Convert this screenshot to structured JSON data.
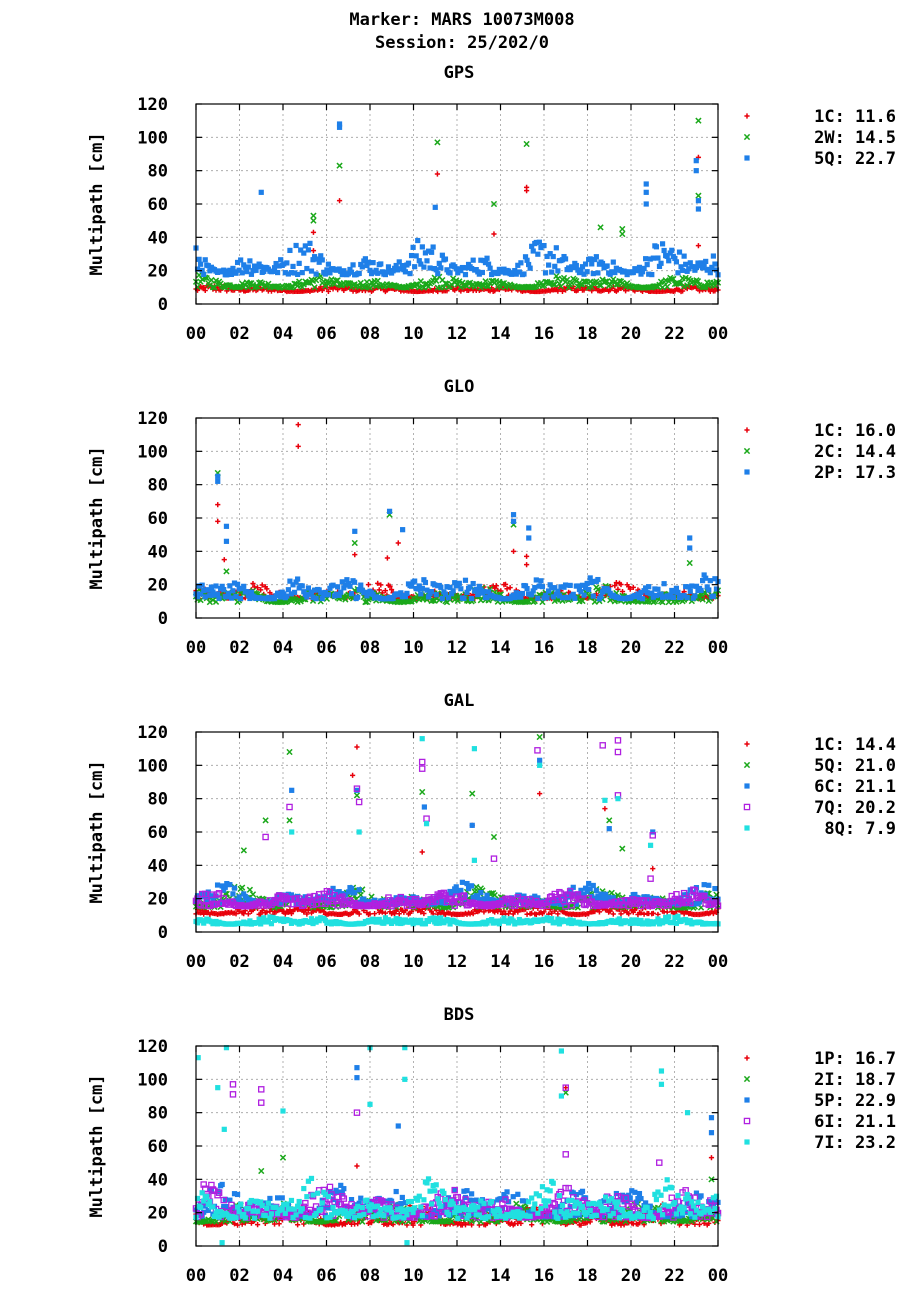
{
  "title_line1": "Marker: MARS 10073M008",
  "title_line2": "Session: 25/202/0",
  "colors": {
    "red": "#e8000b",
    "green": "#1aa81a",
    "blue": "#1e7fe8",
    "purple": "#b020e0",
    "cyan": "#20e0e0"
  },
  "chart_data": [
    {
      "type": "scatter",
      "title": "GPS",
      "ylabel": "Multipath [cm]",
      "xlabel": "",
      "ylim": [
        0,
        120
      ],
      "yticks": [
        "0",
        "20",
        "40",
        "60",
        "80",
        "100",
        "120"
      ],
      "xticks": [
        "00",
        "02",
        "04",
        "06",
        "08",
        "10",
        "12",
        "14",
        "16",
        "18",
        "20",
        "22",
        "00"
      ],
      "grid": true,
      "legend_position": "right",
      "series": [
        {
          "name": "1C",
          "label": "1C: 11.6",
          "rms": 11.6,
          "marker": "plus",
          "color": "red",
          "band": [
            6,
            12
          ],
          "spikes": [
            [
              5.4,
              43
            ],
            [
              5.4,
              32
            ],
            [
              6.6,
              62
            ],
            [
              11.1,
              78
            ],
            [
              13.7,
              42
            ],
            [
              15.2,
              70
            ],
            [
              15.2,
              68
            ],
            [
              23.1,
              88
            ],
            [
              23.1,
              35
            ]
          ]
        },
        {
          "name": "2W",
          "label": "2W: 14.5",
          "rms": 14.5,
          "marker": "x",
          "color": "green",
          "band": [
            7,
            18
          ],
          "spikes": [
            [
              5.4,
              53
            ],
            [
              5.4,
              50
            ],
            [
              6.6,
              83
            ],
            [
              11.1,
              97
            ],
            [
              13.7,
              60
            ],
            [
              15.2,
              96
            ],
            [
              18.6,
              46
            ],
            [
              19.6,
              45
            ],
            [
              19.6,
              42
            ],
            [
              23.1,
              110
            ],
            [
              23.1,
              65
            ]
          ]
        },
        {
          "name": "5Q",
          "label": "5Q: 22.7",
          "rms": 22.7,
          "marker": "square",
          "color": "blue",
          "band": [
            10,
            40
          ],
          "spikes": [
            [
              3.0,
              67
            ],
            [
              6.6,
              108
            ],
            [
              6.6,
              106
            ],
            [
              11.0,
              58
            ],
            [
              20.7,
              72
            ],
            [
              20.7,
              67
            ],
            [
              20.7,
              60
            ],
            [
              23.0,
              86
            ],
            [
              23.0,
              80
            ],
            [
              23.1,
              62
            ],
            [
              23.1,
              57
            ]
          ]
        }
      ]
    },
    {
      "type": "scatter",
      "title": "GLO",
      "ylabel": "Multipath [cm]",
      "xlabel": "",
      "ylim": [
        0,
        120
      ],
      "yticks": [
        "0",
        "20",
        "40",
        "60",
        "80",
        "100",
        "120"
      ],
      "xticks": [
        "00",
        "02",
        "04",
        "06",
        "08",
        "10",
        "12",
        "14",
        "16",
        "18",
        "20",
        "22",
        "00"
      ],
      "grid": true,
      "legend_position": "right",
      "series": [
        {
          "name": "1C",
          "label": "1C: 16.0",
          "rms": 16.0,
          "marker": "plus",
          "color": "red",
          "band": [
            8,
            22
          ],
          "spikes": [
            [
              1.0,
              68
            ],
            [
              1.0,
              58
            ],
            [
              1.3,
              35
            ],
            [
              4.7,
              116
            ],
            [
              4.7,
              103
            ],
            [
              7.3,
              38
            ],
            [
              8.8,
              36
            ],
            [
              9.3,
              45
            ],
            [
              14.6,
              40
            ],
            [
              15.2,
              37
            ],
            [
              15.2,
              32
            ]
          ]
        },
        {
          "name": "2C",
          "label": "2C: 14.4",
          "rms": 14.4,
          "marker": "x",
          "color": "green",
          "band": [
            6,
            20
          ],
          "spikes": [
            [
              1.0,
              87
            ],
            [
              1.4,
              28
            ],
            [
              7.3,
              45
            ],
            [
              8.9,
              62
            ],
            [
              14.6,
              56
            ],
            [
              22.7,
              33
            ]
          ]
        },
        {
          "name": "2P",
          "label": "2P: 17.3",
          "rms": 17.3,
          "marker": "square",
          "color": "blue",
          "band": [
            6,
            28
          ],
          "spikes": [
            [
              1.0,
              85
            ],
            [
              1.0,
              82
            ],
            [
              1.4,
              55
            ],
            [
              1.4,
              46
            ],
            [
              7.3,
              52
            ],
            [
              8.9,
              64
            ],
            [
              9.5,
              53
            ],
            [
              14.6,
              62
            ],
            [
              14.6,
              58
            ],
            [
              15.3,
              54
            ],
            [
              15.3,
              48
            ],
            [
              22.7,
              48
            ],
            [
              22.7,
              42
            ]
          ]
        }
      ]
    },
    {
      "type": "scatter",
      "title": "GAL",
      "ylabel": "Multipath [cm]",
      "xlabel": "",
      "ylim": [
        0,
        120
      ],
      "yticks": [
        "0",
        "20",
        "40",
        "60",
        "80",
        "100",
        "120"
      ],
      "xticks": [
        "00",
        "02",
        "04",
        "06",
        "08",
        "10",
        "12",
        "14",
        "16",
        "18",
        "20",
        "22",
        "00"
      ],
      "grid": true,
      "legend_position": "right",
      "series": [
        {
          "name": "1C",
          "label": "1C: 14.4",
          "rms": 14.4,
          "marker": "plus",
          "color": "red",
          "band": [
            8,
            18
          ],
          "spikes": [
            [
              7.2,
              94
            ],
            [
              7.4,
              111
            ],
            [
              10.4,
              48
            ],
            [
              12.7,
              64
            ],
            [
              15.8,
              83
            ],
            [
              18.8,
              74
            ],
            [
              21.0,
              38
            ]
          ]
        },
        {
          "name": "5Q",
          "label": "5Q: 21.0",
          "rms": 21.0,
          "marker": "x",
          "color": "green",
          "band": [
            10,
            28
          ],
          "spikes": [
            [
              2.2,
              49
            ],
            [
              3.2,
              67
            ],
            [
              4.3,
              108
            ],
            [
              4.3,
              67
            ],
            [
              7.4,
              82
            ],
            [
              10.4,
              84
            ],
            [
              12.7,
              83
            ],
            [
              13.7,
              57
            ],
            [
              15.8,
              117
            ],
            [
              19.0,
              67
            ],
            [
              19.6,
              50
            ]
          ]
        },
        {
          "name": "6C",
          "label": "6C: 21.1",
          "rms": 21.1,
          "marker": "square",
          "color": "blue",
          "band": [
            12,
            30
          ],
          "spikes": [
            [
              4.4,
              85
            ],
            [
              7.4,
              85
            ],
            [
              10.5,
              75
            ],
            [
              12.7,
              64
            ],
            [
              15.8,
              103
            ],
            [
              19.0,
              62
            ],
            [
              21.0,
              60
            ]
          ]
        },
        {
          "name": "7Q",
          "label": "7Q: 20.2",
          "rms": 20.2,
          "marker": "osquare",
          "color": "purple",
          "band": [
            12,
            26
          ],
          "spikes": [
            [
              3.2,
              57
            ],
            [
              4.3,
              75
            ],
            [
              7.4,
              86
            ],
            [
              7.5,
              78
            ],
            [
              10.4,
              102
            ],
            [
              10.4,
              98
            ],
            [
              10.6,
              68
            ],
            [
              13.7,
              44
            ],
            [
              15.7,
              109
            ],
            [
              18.7,
              112
            ],
            [
              19.4,
              115
            ],
            [
              19.4,
              108
            ],
            [
              19.4,
              82
            ],
            [
              21.0,
              58
            ],
            [
              20.9,
              32
            ]
          ]
        },
        {
          "name": "8Q",
          "label": "8Q:  7.9",
          "rms": 7.9,
          "marker": "square",
          "color": "cyan",
          "band": [
            3,
            10
          ],
          "spikes": [
            [
              4.4,
              60
            ],
            [
              7.5,
              60
            ],
            [
              10.4,
              116
            ],
            [
              10.6,
              65
            ],
            [
              12.8,
              110
            ],
            [
              12.8,
              43
            ],
            [
              15.8,
              100
            ],
            [
              18.8,
              79
            ],
            [
              19.4,
              80
            ],
            [
              20.9,
              52
            ]
          ]
        }
      ]
    },
    {
      "type": "scatter",
      "title": "BDS",
      "ylabel": "Multipath [cm]",
      "xlabel": "",
      "ylim": [
        0,
        120
      ],
      "yticks": [
        "0",
        "20",
        "40",
        "60",
        "80",
        "100",
        "120"
      ],
      "xticks": [
        "00",
        "02",
        "04",
        "06",
        "08",
        "10",
        "12",
        "14",
        "16",
        "18",
        "20",
        "22",
        "00"
      ],
      "grid": true,
      "legend_position": "right",
      "series": [
        {
          "name": "1P",
          "label": "1P: 16.7",
          "rms": 16.7,
          "marker": "plus",
          "color": "red",
          "band": [
            8,
            26
          ],
          "spikes": [
            [
              7.4,
              48
            ],
            [
              17.0,
              95
            ],
            [
              23.7,
              53
            ]
          ]
        },
        {
          "name": "2I",
          "label": "2I: 18.7",
          "rms": 18.7,
          "marker": "x",
          "color": "green",
          "band": [
            10,
            28
          ],
          "spikes": [
            [
              3.0,
              45
            ],
            [
              4.0,
              53
            ],
            [
              17.0,
              92
            ],
            [
              23.7,
              40
            ]
          ]
        },
        {
          "name": "5P",
          "label": "5P: 22.9",
          "rms": 22.9,
          "marker": "square",
          "color": "blue",
          "band": [
            10,
            40
          ],
          "spikes": [
            [
              7.4,
              107
            ],
            [
              7.4,
              101
            ],
            [
              9.3,
              72
            ],
            [
              23.7,
              77
            ],
            [
              23.7,
              68
            ]
          ]
        },
        {
          "name": "6I",
          "label": "6I: 21.1",
          "rms": 21.1,
          "marker": "osquare",
          "color": "purple",
          "band": [
            10,
            38
          ],
          "spikes": [
            [
              1.7,
              97
            ],
            [
              1.7,
              91
            ],
            [
              3.0,
              94
            ],
            [
              3.0,
              86
            ],
            [
              7.4,
              80
            ],
            [
              17.0,
              95
            ],
            [
              17.0,
              55
            ],
            [
              21.3,
              50
            ]
          ]
        },
        {
          "name": "7I",
          "label": "7I: 23.2",
          "rms": 23.2,
          "marker": "square",
          "color": "cyan",
          "band": [
            8,
            42
          ],
          "spikes": [
            [
              0.1,
              113
            ],
            [
              1.0,
              95
            ],
            [
              1.4,
              119
            ],
            [
              1.3,
              70
            ],
            [
              4.0,
              81
            ],
            [
              8.0,
              119
            ],
            [
              8.0,
              85
            ],
            [
              9.6,
              119
            ],
            [
              9.6,
              100
            ],
            [
              16.8,
              117
            ],
            [
              16.8,
              90
            ],
            [
              21.4,
              105
            ],
            [
              21.4,
              97
            ],
            [
              22.6,
              80
            ],
            [
              1.2,
              2
            ],
            [
              9.7,
              2
            ]
          ]
        }
      ]
    }
  ]
}
